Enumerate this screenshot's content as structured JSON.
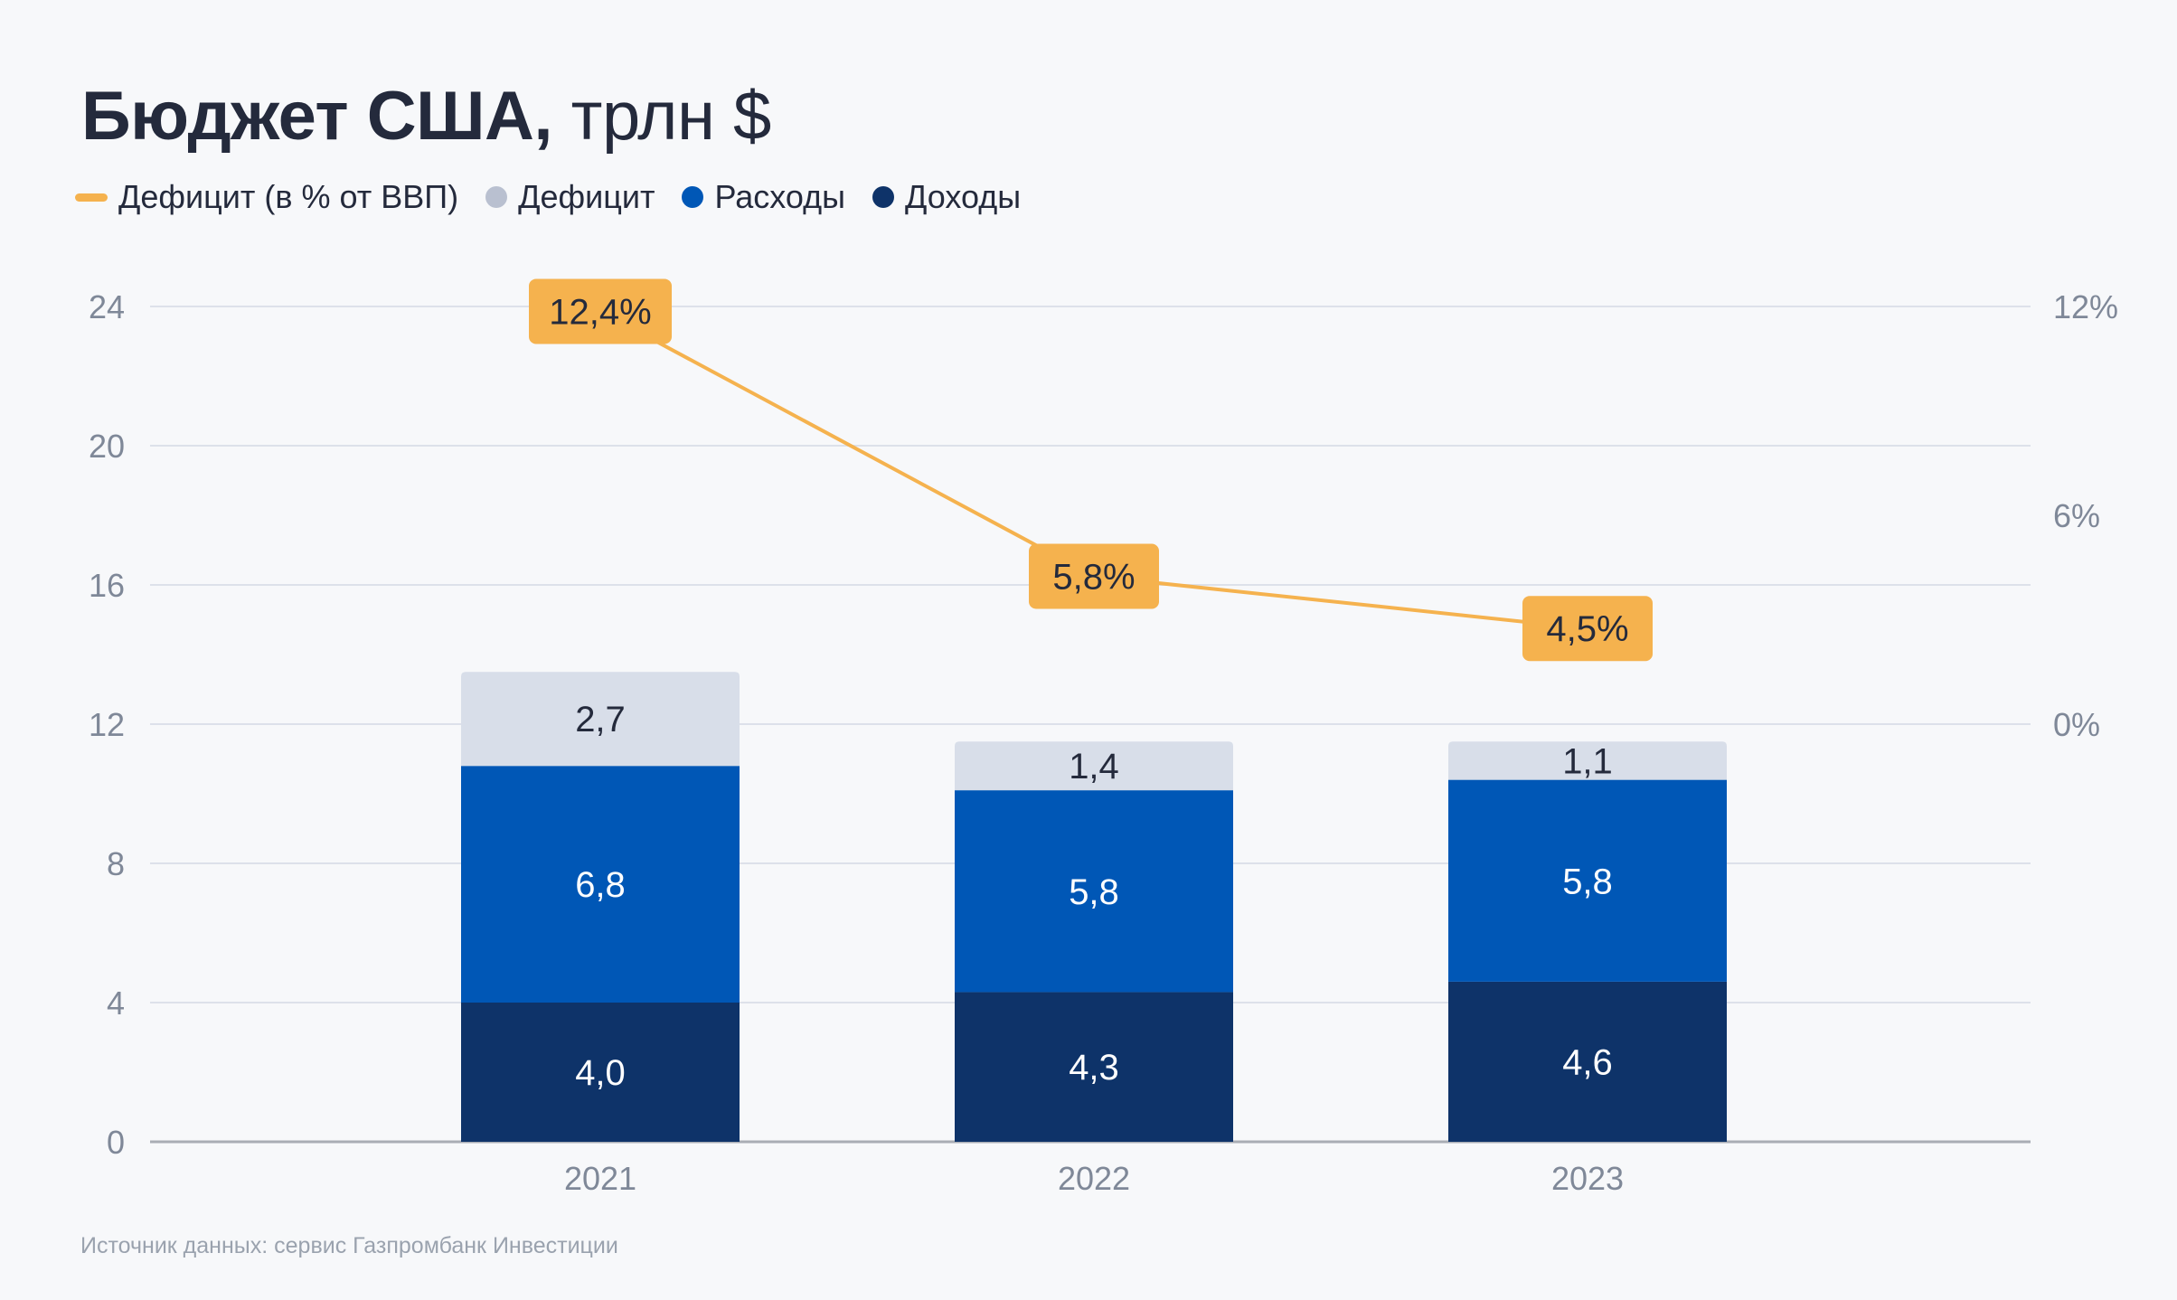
{
  "title": {
    "bold": "Бюджет США,",
    "light": "трлн $"
  },
  "legend": [
    {
      "label": "Дефицит (в % от ВВП)",
      "shape": "dash",
      "color": "#F5B24E"
    },
    {
      "label": "Дефицит",
      "shape": "dot",
      "color": "#B9C0D0"
    },
    {
      "label": "Расходы",
      "shape": "dot",
      "color": "#0057B6"
    },
    {
      "label": "Доходы",
      "shape": "dot",
      "color": "#0E3369"
    }
  ],
  "source": "Источник данных: сервис Газпромбанк Инвестиции",
  "chart_data": {
    "type": "bar",
    "stacked": true,
    "title": "Бюджет США, трлн $",
    "categories": [
      "2021",
      "2022",
      "2023"
    ],
    "series": [
      {
        "name": "Доходы",
        "values": [
          4.0,
          4.3,
          4.6
        ],
        "labels": [
          "4,0",
          "4,3",
          "4,6"
        ],
        "color": "#0E3369",
        "label_color": "#ffffff"
      },
      {
        "name": "Расходы",
        "values": [
          6.8,
          5.8,
          5.8
        ],
        "labels": [
          "6,8",
          "5,8",
          "5,8"
        ],
        "color": "#0057B6",
        "label_color": "#ffffff"
      },
      {
        "name": "Дефицит",
        "values": [
          2.7,
          1.4,
          1.1
        ],
        "labels": [
          "2,7",
          "1,4",
          "1,1"
        ],
        "color": "#D8DEE9",
        "label_color": "#242a3c"
      }
    ],
    "line_series": {
      "name": "Дефицит (в % от ВВП)",
      "type": "line",
      "axis": "right",
      "values": [
        12.4,
        5.8,
        4.5
      ],
      "labels": [
        "12,4%",
        "5,8%",
        "4,5%"
      ],
      "color": "#F5B24E"
    },
    "y_left": {
      "ylim": [
        0,
        24
      ],
      "ticks": [
        0,
        4,
        8,
        12,
        16,
        20,
        24
      ],
      "tick_labels": [
        "0",
        "4",
        "8",
        "12",
        "16",
        "20",
        "24"
      ]
    },
    "y_right": {
      "ticks": [
        0,
        6,
        12
      ],
      "tick_labels": [
        "0%",
        "6%",
        "12%"
      ]
    },
    "xlabel": "",
    "ylabel": "",
    "grid": true,
    "legend_position": "top-left"
  }
}
